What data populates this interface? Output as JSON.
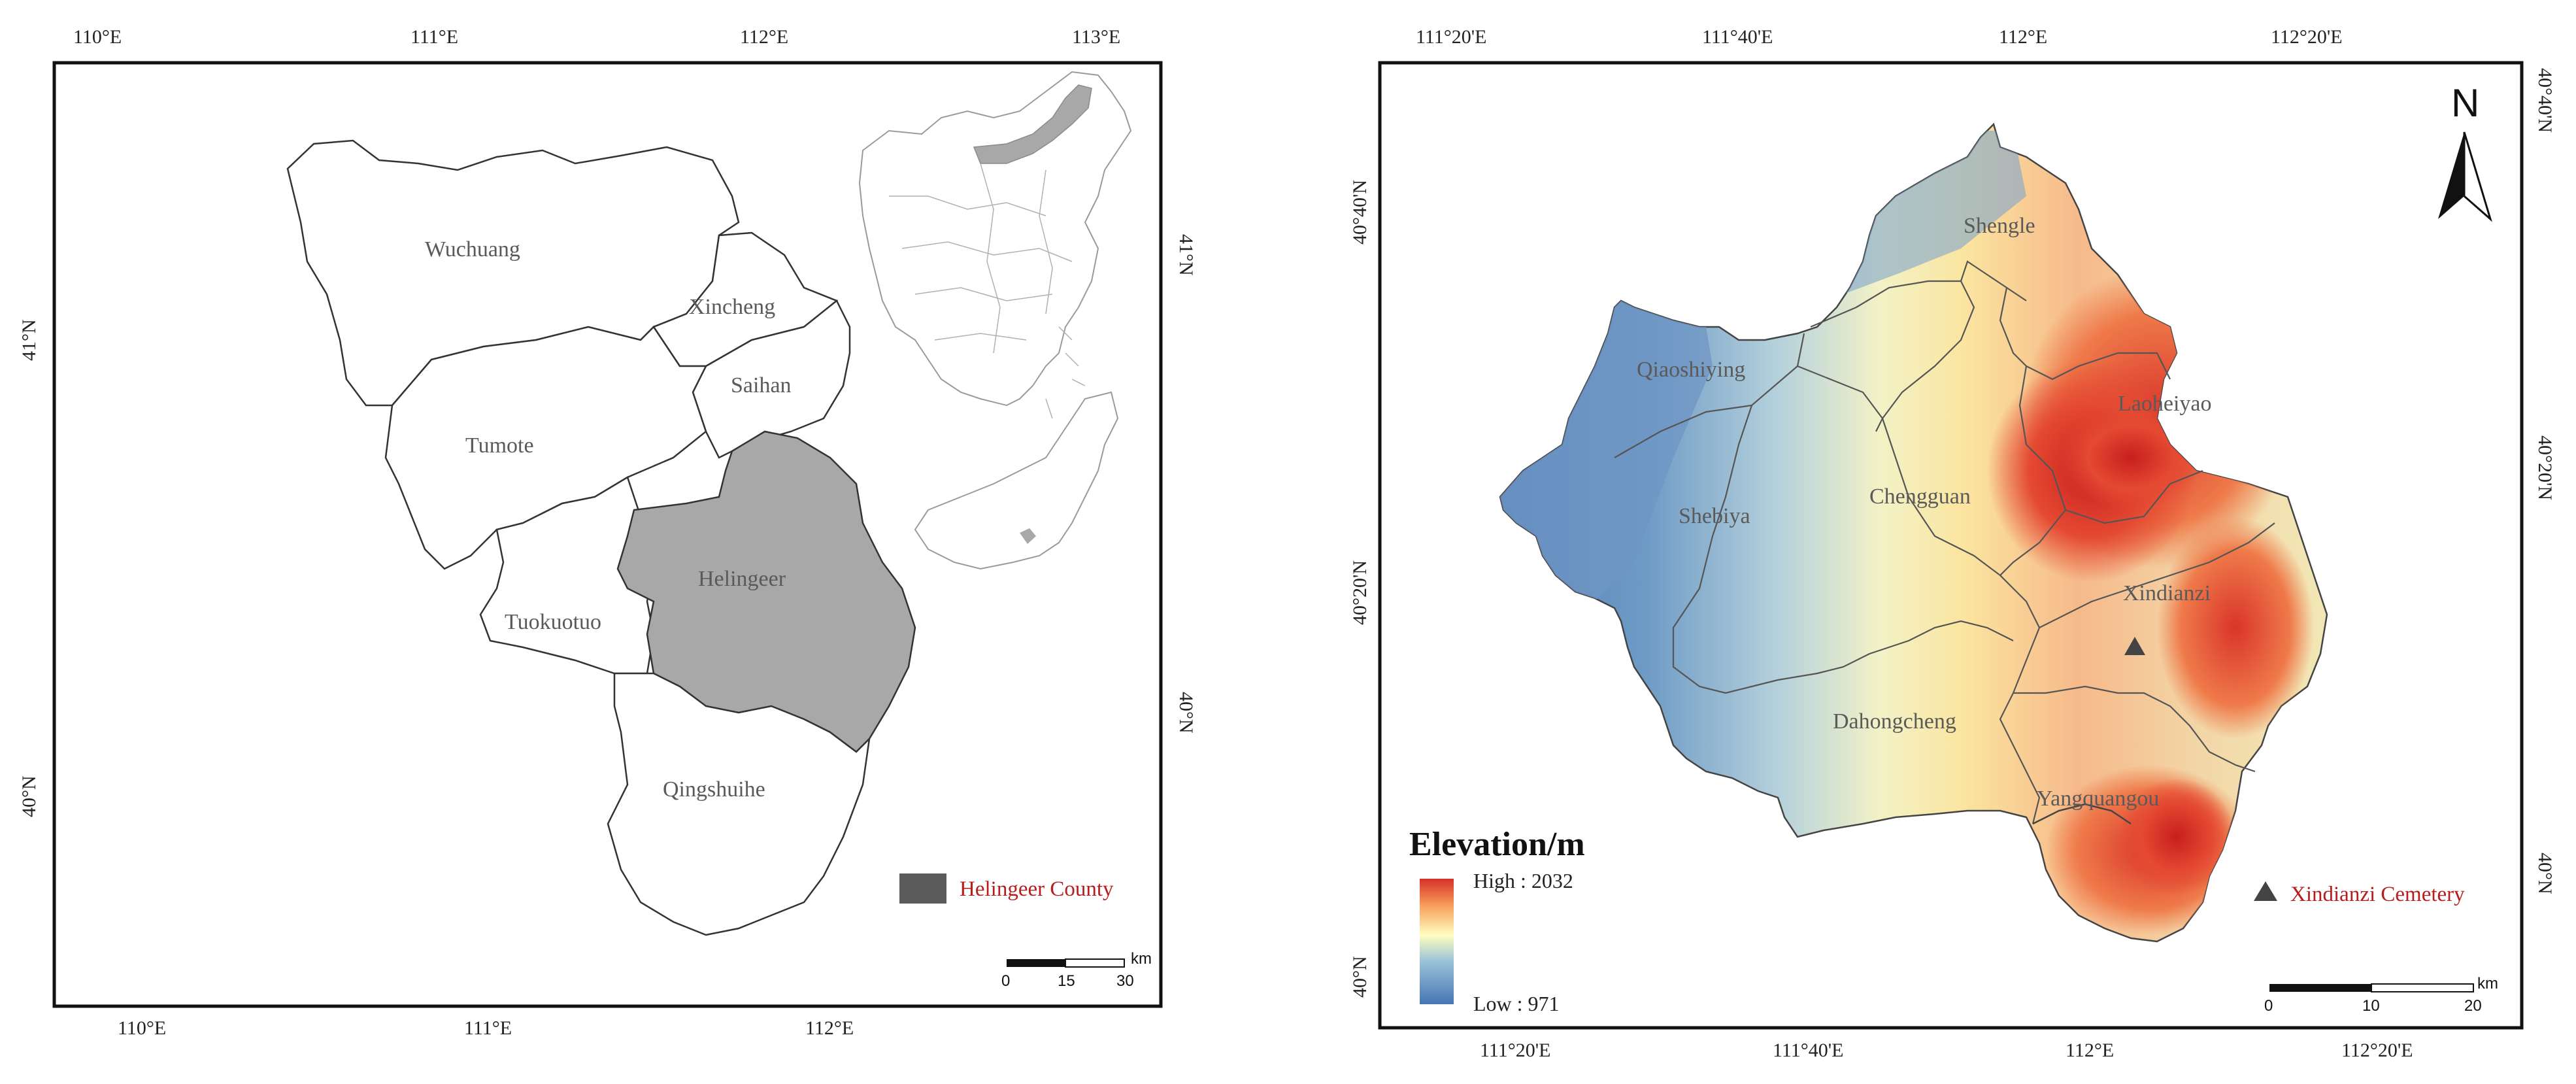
{
  "left_map": {
    "top_ticks": [
      "110°E",
      "111°E",
      "112°E",
      "113°E"
    ],
    "bottom_ticks": [
      "110°E",
      "111°E",
      "112°E"
    ],
    "left_ticks": [
      "41°N",
      "40°N"
    ],
    "right_ticks": [
      "41°N",
      "40°N"
    ],
    "regions": [
      "Wuchuang",
      "Xincheng",
      "Saihan",
      "Tumote",
      "Helingeer",
      "Tuokuotuo",
      "Qingshuihe"
    ],
    "legend_label": "Helingeer County",
    "scale": {
      "ticks": [
        "0",
        "15",
        "30"
      ],
      "unit": "km"
    }
  },
  "right_map": {
    "top_ticks": [
      "111°20'E",
      "111°40'E",
      "112°E",
      "112°20'E"
    ],
    "bottom_ticks": [
      "111°20'E",
      "111°40'E",
      "112°E",
      "112°20'E"
    ],
    "left_ticks": [
      "40°40'N",
      "40°20'N",
      "40°N"
    ],
    "right_ticks": [
      "40°40'N",
      "40°20'N",
      "40°N"
    ],
    "regions": [
      "Shengle",
      "Qiaoshiying",
      "Laoheiyao",
      "Chengguan",
      "Shebiya",
      "Xindianzi",
      "Dahongcheng",
      "Yangquangou"
    ],
    "north_label": "N",
    "elevation_title": "Elevation/m",
    "elevation_high": "High : 2032",
    "elevation_low": "Low : 971",
    "cemetery_label": "Xindianzi Cemetery",
    "scale": {
      "ticks": [
        "0",
        "10",
        "20"
      ],
      "unit": "km"
    }
  },
  "colors": {
    "helingeer_fill": "#a8a8a8",
    "legend_swatch": "#5a5a5a",
    "legend_text": "#b81c1c",
    "elev_high": "#d73027",
    "elev_mid": "#ffffbf",
    "elev_low": "#4575b4"
  }
}
